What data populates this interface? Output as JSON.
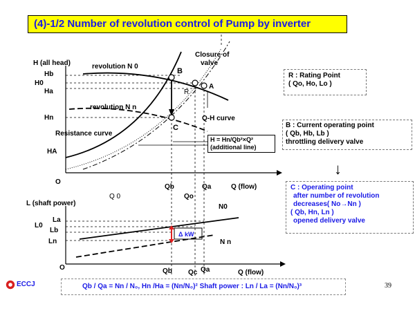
{
  "title": "(4)-1/2 Number of revolution control of Pump by inverter",
  "top_chart": {
    "y_axis_label": "H (all head)",
    "y_ticks": [
      "Hb",
      "H0",
      "Ha",
      "Hn",
      "HA"
    ],
    "origin": "O",
    "x_ticks": [
      "Qb",
      "Qa",
      "Qo"
    ],
    "x_axis_label": "Q (flow)",
    "q0_label": "Q 0",
    "curve_labels": {
      "revolution_n0": "revolution  N 0",
      "revolution_nn": "revolution  N n",
      "resistance": "Resistance curve",
      "qh": "Q-H curve",
      "closure_line1": "Closure of",
      "closure_line2": "valve"
    },
    "points": {
      "B": "B",
      "R": "R",
      "A": "A",
      "C": "C"
    },
    "additional_line": {
      "line1": "H = Hn/Qb²×Q²",
      "line2": "(additional line)"
    }
  },
  "bottom_chart": {
    "y_axis_label": "L (shaft power)",
    "y_ticks": [
      "La",
      "L0",
      "Lb",
      "Ln"
    ],
    "origin": "O",
    "x_ticks": [
      "Qb",
      "Qc",
      "Qa"
    ],
    "x_axis_label": "Q (flow)",
    "curve_labels": {
      "n0": "N0",
      "nn": "N n"
    },
    "delta": "Δ kW"
  },
  "rating_point": {
    "line1": "R :  Rating Point",
    "line2": "( Qo, Ho, Lo )"
  },
  "current_point": {
    "line1": "B :  Current operating point",
    "line2": "( Qb, Hb, Lb )",
    "line3": "throttling delivery valve"
  },
  "operating_point": {
    "line1": "C :  Operating point",
    "line2": "after number of revolution",
    "line3": "decreases( No→Nn )",
    "line4": "( Qb, Hn, Ln )",
    "line5": "opened delivery valve"
  },
  "formula": "Qb / Qa = Nn / N₀,     Hn /Ha = (Nn/N₀)²    Shaft  power : Ln / La = (Nn/N₀)³",
  "logo_text": "ECCJ",
  "page_number": "39",
  "colors": {
    "title_bg": "#ffff00",
    "title_text": "#1a1ae6",
    "delta_arrow": "#e02020"
  }
}
